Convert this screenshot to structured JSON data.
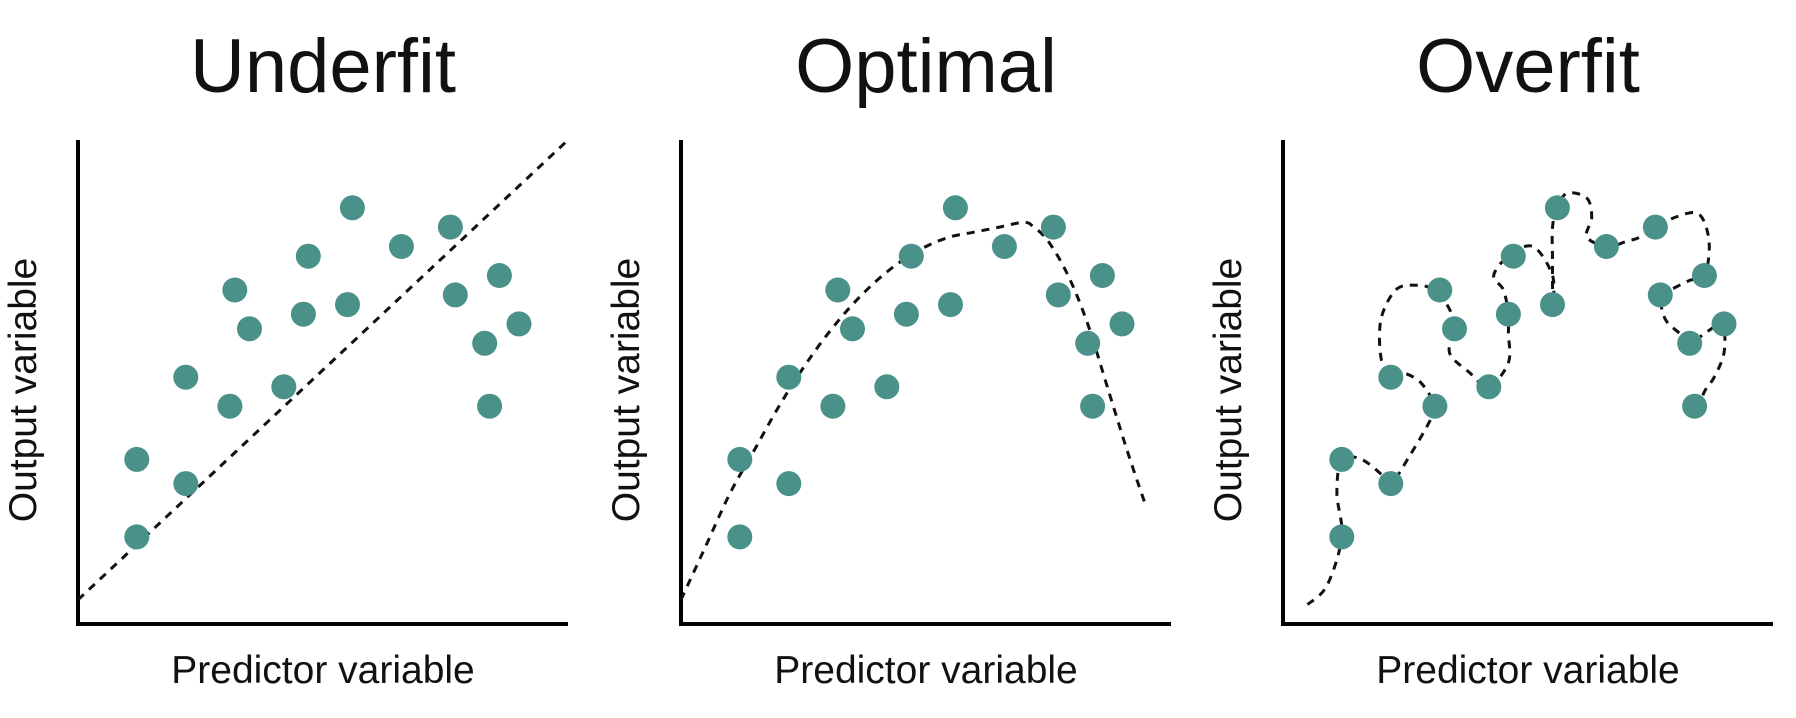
{
  "point_color": "#4a918a",
  "chart_data": [
    {
      "type": "scatter",
      "title": "Underfit",
      "xlabel": "Predictor variable",
      "ylabel": "Output variable",
      "xlim": [
        0,
        100
      ],
      "ylim": [
        0,
        100
      ],
      "points": [
        [
          12,
          18
        ],
        [
          12,
          34
        ],
        [
          22,
          29
        ],
        [
          22,
          51
        ],
        [
          31,
          45
        ],
        [
          32,
          69
        ],
        [
          35,
          61
        ],
        [
          42,
          49
        ],
        [
          46,
          64
        ],
        [
          47,
          76
        ],
        [
          55,
          66
        ],
        [
          56,
          86
        ],
        [
          66,
          78
        ],
        [
          76,
          82
        ],
        [
          77,
          68
        ],
        [
          83,
          58
        ],
        [
          84,
          45
        ],
        [
          86,
          72
        ],
        [
          90,
          62
        ]
      ],
      "fit": {
        "style": "dashed",
        "curve": [
          [
            0,
            5
          ],
          [
            100,
            100
          ]
        ]
      }
    },
    {
      "type": "scatter",
      "title": "Optimal",
      "xlabel": "Predictor variable",
      "ylabel": "Output variable",
      "xlim": [
        0,
        100
      ],
      "ylim": [
        0,
        100
      ],
      "points": [
        [
          12,
          18
        ],
        [
          12,
          34
        ],
        [
          22,
          29
        ],
        [
          22,
          51
        ],
        [
          31,
          45
        ],
        [
          32,
          69
        ],
        [
          35,
          61
        ],
        [
          42,
          49
        ],
        [
          46,
          64
        ],
        [
          47,
          76
        ],
        [
          55,
          66
        ],
        [
          56,
          86
        ],
        [
          66,
          78
        ],
        [
          76,
          82
        ],
        [
          77,
          68
        ],
        [
          83,
          58
        ],
        [
          84,
          45
        ],
        [
          86,
          72
        ],
        [
          90,
          62
        ]
      ],
      "fit": {
        "style": "dashed",
        "curve": [
          [
            0,
            5
          ],
          [
            5,
            16
          ],
          [
            10,
            27
          ],
          [
            15,
            36
          ],
          [
            20,
            45
          ],
          [
            25,
            53
          ],
          [
            30,
            60
          ],
          [
            35,
            66
          ],
          [
            40,
            71
          ],
          [
            45,
            75
          ],
          [
            50,
            78
          ],
          [
            55,
            80
          ],
          [
            60,
            81
          ],
          [
            65,
            82
          ],
          [
            70,
            83
          ],
          [
            72,
            82
          ],
          [
            75,
            79
          ],
          [
            79,
            72
          ],
          [
            83,
            62
          ],
          [
            87,
            49
          ],
          [
            91,
            36
          ],
          [
            95,
            24
          ]
        ]
      }
    },
    {
      "type": "scatter",
      "title": "Overfit",
      "xlabel": "Predictor variable",
      "ylabel": "Output variable",
      "xlim": [
        0,
        100
      ],
      "ylim": [
        0,
        100
      ],
      "points": [
        [
          12,
          18
        ],
        [
          12,
          34
        ],
        [
          22,
          29
        ],
        [
          22,
          51
        ],
        [
          31,
          45
        ],
        [
          32,
          69
        ],
        [
          35,
          61
        ],
        [
          42,
          49
        ],
        [
          46,
          64
        ],
        [
          47,
          76
        ],
        [
          55,
          66
        ],
        [
          56,
          86
        ],
        [
          66,
          78
        ],
        [
          76,
          82
        ],
        [
          77,
          68
        ],
        [
          83,
          58
        ],
        [
          84,
          45
        ],
        [
          86,
          72
        ],
        [
          90,
          62
        ]
      ],
      "fit": {
        "style": "dashed",
        "curve": [
          [
            5,
            4
          ],
          [
            9,
            8
          ],
          [
            12,
            18
          ],
          [
            11,
            27
          ],
          [
            12,
            34
          ],
          [
            16,
            34
          ],
          [
            20,
            31
          ],
          [
            22,
            29
          ],
          [
            26,
            35
          ],
          [
            30,
            42
          ],
          [
            31,
            45
          ],
          [
            28,
            50
          ],
          [
            24,
            52
          ],
          [
            22,
            51
          ],
          [
            20,
            55
          ],
          [
            20,
            63
          ],
          [
            23,
            69
          ],
          [
            27,
            70
          ],
          [
            31,
            69
          ],
          [
            34,
            65
          ],
          [
            35,
            61
          ],
          [
            34,
            56
          ],
          [
            38,
            52
          ],
          [
            42,
            49
          ],
          [
            46,
            54
          ],
          [
            46,
            60
          ],
          [
            46,
            64
          ],
          [
            45,
            69
          ],
          [
            43,
            72
          ],
          [
            46,
            76
          ],
          [
            51,
            78
          ],
          [
            55,
            72
          ],
          [
            55,
            66
          ],
          [
            55,
            75
          ],
          [
            55,
            82
          ],
          [
            56,
            86
          ],
          [
            58,
            89
          ],
          [
            62,
            88
          ],
          [
            63,
            84
          ],
          [
            62,
            80
          ],
          [
            66,
            78
          ],
          [
            70,
            79
          ],
          [
            73,
            80
          ],
          [
            76,
            82
          ],
          [
            80,
            84
          ],
          [
            84,
            85
          ],
          [
            86,
            83
          ],
          [
            87,
            78
          ],
          [
            86,
            72
          ],
          [
            83,
            71
          ],
          [
            79,
            69
          ],
          [
            77,
            68
          ],
          [
            78,
            63
          ],
          [
            81,
            60
          ],
          [
            83,
            58
          ],
          [
            86,
            60
          ],
          [
            89,
            62
          ],
          [
            90,
            62
          ],
          [
            90,
            56
          ],
          [
            88,
            51
          ],
          [
            86,
            48
          ],
          [
            85,
            45
          ]
        ]
      }
    }
  ]
}
